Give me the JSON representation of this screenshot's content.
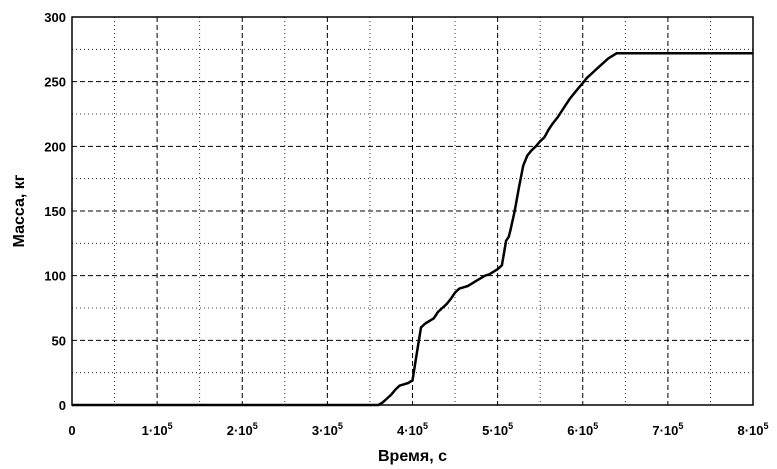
{
  "chart_data": {
    "type": "line",
    "xlabel": "Время, с",
    "ylabel": "Масса, кг",
    "xlim": [
      0,
      800000
    ],
    "ylim": [
      0,
      300
    ],
    "x_ticks": [
      {
        "value": 0,
        "label": "0"
      },
      {
        "value": 100000,
        "label": "1·10",
        "exp": "5"
      },
      {
        "value": 200000,
        "label": "2·10",
        "exp": "5"
      },
      {
        "value": 300000,
        "label": "3·10",
        "exp": "5"
      },
      {
        "value": 400000,
        "label": "4·10",
        "exp": "5"
      },
      {
        "value": 500000,
        "label": "5·10",
        "exp": "5"
      },
      {
        "value": 600000,
        "label": "6·10",
        "exp": "5"
      },
      {
        "value": 700000,
        "label": "7·10",
        "exp": "5"
      },
      {
        "value": 800000,
        "label": "8·10",
        "exp": "5"
      }
    ],
    "y_ticks": [
      {
        "value": 0,
        "label": "0"
      },
      {
        "value": 50,
        "label": "50"
      },
      {
        "value": 100,
        "label": "100"
      },
      {
        "value": 150,
        "label": "150"
      },
      {
        "value": 200,
        "label": "200"
      },
      {
        "value": 250,
        "label": "250"
      },
      {
        "value": 300,
        "label": "300"
      }
    ],
    "grid": {
      "major": "dashed",
      "minor": "dotted"
    },
    "line_color": "#000000",
    "series": [
      {
        "x": [
          0,
          360000,
          365000,
          370000,
          375000,
          380000,
          385000,
          390000,
          395000,
          400000,
          405000,
          410000,
          415000,
          420000,
          425000,
          430000,
          435000,
          440000,
          445000,
          450000,
          455000,
          460000,
          465000,
          470000,
          475000,
          480000,
          485000,
          490000,
          495000,
          500000,
          505000,
          510000,
          513000,
          515000,
          520000,
          525000,
          530000,
          535000,
          540000,
          545000,
          550000,
          555000,
          560000,
          565000,
          570000,
          575000,
          580000,
          585000,
          590000,
          595000,
          600000,
          605000,
          610000,
          615000,
          620000,
          625000,
          630000,
          635000,
          640000,
          645000,
          650000,
          700000,
          800000
        ],
        "y": [
          0,
          0,
          2,
          5,
          8,
          12,
          15,
          16,
          17,
          19,
          40,
          60,
          63,
          65,
          67,
          72,
          75,
          78,
          82,
          87,
          90,
          91,
          92,
          94,
          96,
          98,
          100,
          101,
          103,
          105,
          108,
          127,
          130,
          135,
          150,
          168,
          185,
          193,
          197,
          200,
          204,
          207,
          213,
          218,
          222,
          227,
          232,
          237,
          241,
          245,
          249,
          253,
          256,
          259,
          262,
          265,
          268,
          270,
          272,
          272,
          272,
          272,
          272
        ]
      }
    ]
  }
}
